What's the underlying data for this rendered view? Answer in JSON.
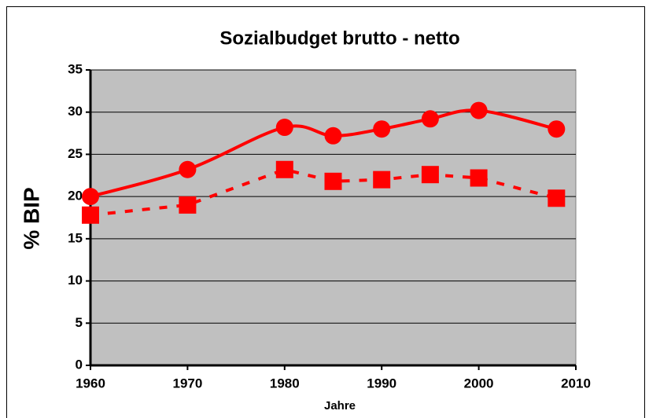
{
  "chart_data": {
    "type": "line",
    "title": "Sozialbudget brutto - netto",
    "x_label": "Jahre",
    "y_label": "% BIP",
    "x": [
      1960,
      1970,
      1980,
      1985,
      1990,
      1995,
      2000,
      2008
    ],
    "series": [
      {
        "color": "#ff0000",
        "style": "solid",
        "marker": "circle",
        "smooth": true,
        "values": [
          20,
          23.2,
          28.2,
          27.2,
          28,
          29.2,
          30.2,
          28
        ]
      },
      {
        "color": "#ff0000",
        "style": "dashed",
        "marker": "square",
        "smooth": false,
        "values": [
          17.8,
          19,
          23.2,
          21.8,
          22,
          22.6,
          22.2,
          19.8
        ]
      }
    ],
    "xlim": [
      1960,
      2010
    ],
    "xticks": [
      1960,
      1970,
      1980,
      1990,
      2000,
      2010
    ],
    "ylim": [
      0,
      35
    ],
    "yticks": [
      0,
      5,
      10,
      15,
      20,
      25,
      30,
      35
    ],
    "grid": true
  }
}
